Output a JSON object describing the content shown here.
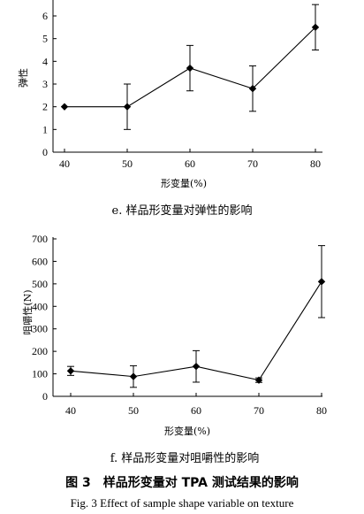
{
  "chart_data": [
    {
      "type": "line",
      "x": [
        40,
        50,
        60,
        70,
        80
      ],
      "series": [
        {
          "values": [
            2.0,
            2.0,
            3.7,
            2.8,
            5.5
          ],
          "err": [
            0.0,
            1.0,
            1.0,
            1.0,
            1.0
          ]
        }
      ],
      "xlabel": "形变量(%)",
      "ylabel": "弹性",
      "ylim": [
        0,
        6
      ],
      "yticks": [
        0,
        1,
        2,
        3,
        4,
        5,
        6
      ],
      "xticks": [
        40,
        50,
        60,
        70,
        80
      ],
      "caption": "e. 样品形变量对弹性的影响",
      "grid": false
    },
    {
      "type": "line",
      "x": [
        40,
        50,
        60,
        70,
        80
      ],
      "series": [
        {
          "values": [
            113,
            88,
            133,
            72,
            510
          ],
          "err": [
            20,
            48,
            70,
            10,
            160
          ]
        }
      ],
      "xlabel": "形变量(%)",
      "ylabel": "咀嚼性(N)",
      "ylim": [
        0,
        700
      ],
      "yticks": [
        0,
        100,
        200,
        300,
        400,
        500,
        600,
        700
      ],
      "xticks": [
        40,
        50,
        60,
        70,
        80
      ],
      "caption": "f. 样品形变量对咀嚼性的影响",
      "grid": false
    }
  ],
  "figure": {
    "title": "图 3　样品形变量对 TPA 测试结果的影响",
    "subtitle_en": "Fig. 3 Effect of sample shape variable on texture"
  }
}
